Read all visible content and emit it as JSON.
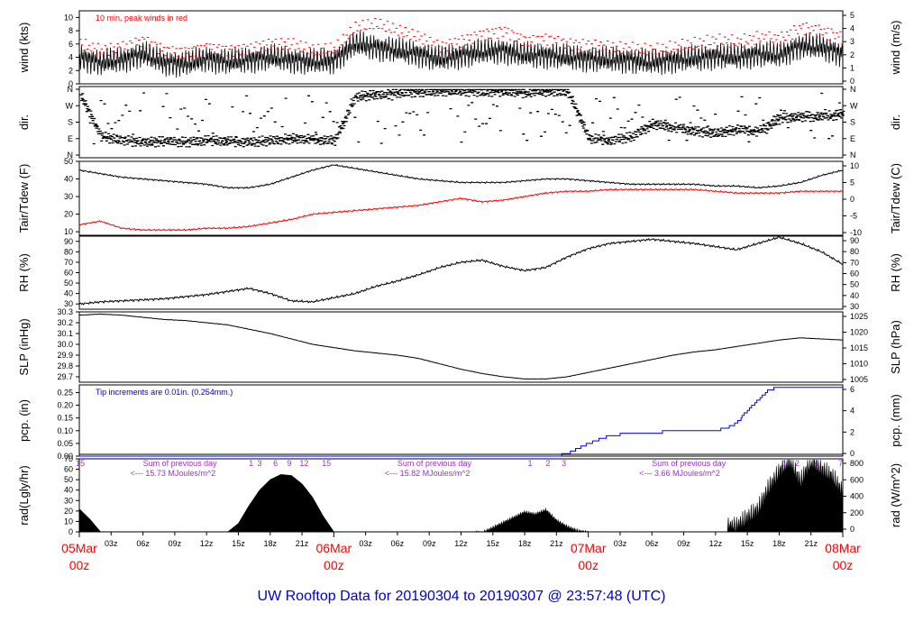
{
  "title": "UW Rooftop Data for 20190304  to  20190307 @ 23:57:48  (UTC)",
  "colors": {
    "series": "#000000",
    "peak": "#ff0000",
    "dew": "#ff0000",
    "precip": "#0000ff",
    "note_blue": "#0000cc",
    "sum_purple": "#9933cc",
    "day_label": "#ff0000"
  },
  "x_axis": {
    "range_hours": [
      0,
      72
    ],
    "ticks": [
      {
        "h": 3,
        "label": "03z"
      },
      {
        "h": 6,
        "label": "06z"
      },
      {
        "h": 9,
        "label": "09z"
      },
      {
        "h": 12,
        "label": "12z"
      },
      {
        "h": 15,
        "label": "15z"
      },
      {
        "h": 18,
        "label": "18z"
      },
      {
        "h": 21,
        "label": "21z"
      },
      {
        "h": 27,
        "label": "03z"
      },
      {
        "h": 30,
        "label": "06z"
      },
      {
        "h": 33,
        "label": "09z"
      },
      {
        "h": 36,
        "label": "12z"
      },
      {
        "h": 39,
        "label": "15z"
      },
      {
        "h": 42,
        "label": "18z"
      },
      {
        "h": 45,
        "label": "21z"
      },
      {
        "h": 51,
        "label": "03z"
      },
      {
        "h": 54,
        "label": "06z"
      },
      {
        "h": 57,
        "label": "09z"
      },
      {
        "h": 60,
        "label": "12z"
      },
      {
        "h": 63,
        "label": "15z"
      },
      {
        "h": 66,
        "label": "18z"
      },
      {
        "h": 69,
        "label": "21z"
      }
    ],
    "day_labels": [
      {
        "h": 0,
        "date": "05Mar",
        "time": "00z"
      },
      {
        "h": 24,
        "date": "06Mar",
        "time": "00z"
      },
      {
        "h": 48,
        "date": "07Mar",
        "time": "00z"
      },
      {
        "h": 72,
        "date": "08Mar",
        "time": "00z"
      }
    ]
  },
  "chart_data": [
    {
      "type": "line",
      "ylabel": "wind (kts)",
      "ylabel_right": "wind (m/s)",
      "ylim": [
        0,
        11
      ],
      "yticks": [
        0,
        2,
        4,
        6,
        8,
        10
      ],
      "yticks_right": [
        0,
        1,
        2,
        3,
        4,
        5
      ],
      "annotation": "10 min. peak winds in red",
      "x": [
        0,
        2,
        4,
        6,
        8,
        10,
        12,
        14,
        16,
        18,
        20,
        22,
        24,
        26,
        28,
        30,
        32,
        34,
        36,
        38,
        40,
        42,
        44,
        46,
        48,
        50,
        52,
        54,
        56,
        58,
        60,
        62,
        64,
        66,
        68,
        70,
        72
      ],
      "series": [
        {
          "values": [
            4.0,
            3.2,
            3.6,
            4.5,
            3.2,
            3.0,
            3.8,
            3.3,
            3.6,
            4.0,
            3.6,
            3.3,
            3.5,
            6.0,
            5.5,
            5.0,
            4.5,
            3.7,
            4.3,
            4.8,
            5.0,
            4.3,
            4.3,
            4.0,
            3.8,
            3.6,
            3.6,
            3.2,
            3.6,
            3.8,
            4.2,
            4.0,
            4.5,
            4.3,
            5.7,
            5.5,
            4.5
          ]
        },
        {
          "values": [
            6.0,
            5.0,
            5.5,
            6.5,
            5.0,
            4.8,
            5.5,
            5.0,
            5.3,
            6.0,
            6.0,
            5.0,
            5.3,
            8.5,
            9.0,
            8.0,
            7.0,
            5.5,
            6.5,
            7.5,
            8.0,
            6.5,
            6.8,
            6.0,
            5.8,
            5.5,
            5.3,
            5.0,
            5.5,
            6.0,
            6.5,
            6.3,
            7.0,
            6.8,
            8.5,
            8.0,
            7.0
          ]
        }
      ]
    },
    {
      "type": "scatter",
      "ylabel": "dir.",
      "ylabel_right": "dir.",
      "yticks_labels": [
        "N",
        "E",
        "S",
        "W",
        "N"
      ],
      "yticks_labels_right": [
        "N",
        "E",
        "S",
        "W",
        "N"
      ],
      "x": [
        0,
        2,
        4,
        6,
        8,
        10,
        12,
        14,
        16,
        18,
        20,
        22,
        24,
        26,
        28,
        30,
        32,
        34,
        36,
        38,
        40,
        42,
        44,
        46,
        48,
        50,
        52,
        54,
        56,
        58,
        60,
        62,
        64,
        66,
        68,
        70,
        72
      ],
      "values_deg": [
        330,
        100,
        80,
        70,
        75,
        70,
        80,
        75,
        70,
        80,
        90,
        85,
        80,
        320,
        330,
        340,
        345,
        350,
        350,
        345,
        350,
        340,
        350,
        345,
        90,
        80,
        100,
        170,
        150,
        130,
        120,
        140,
        130,
        200,
        210,
        210,
        225
      ]
    },
    {
      "type": "line",
      "ylabel": "Tair/Tdew (F)",
      "ylabel_right": "Tair/Tdew (C)",
      "ylim": [
        8,
        50
      ],
      "yticks": [
        10,
        20,
        30,
        40,
        50
      ],
      "yticks_right": [
        -10,
        -5,
        0,
        5,
        10
      ],
      "x": [
        0,
        2,
        4,
        6,
        8,
        10,
        12,
        14,
        16,
        18,
        20,
        22,
        24,
        26,
        28,
        30,
        32,
        34,
        36,
        38,
        40,
        42,
        44,
        46,
        48,
        50,
        52,
        54,
        56,
        58,
        60,
        62,
        64,
        66,
        68,
        70,
        72
      ],
      "series": [
        {
          "values": [
            45,
            43,
            41,
            40,
            39,
            38,
            37,
            35,
            35,
            37,
            41,
            45,
            48,
            46,
            44,
            42,
            40,
            39,
            38,
            38,
            38,
            39,
            40,
            40,
            39,
            38,
            37,
            37,
            37,
            37,
            36,
            36,
            35,
            36,
            38,
            42,
            45
          ]
        },
        {
          "values": [
            14,
            16,
            12,
            11,
            11,
            11,
            12,
            12,
            13,
            15,
            17,
            20,
            21,
            22,
            23,
            24,
            25,
            27,
            29,
            27,
            28,
            30,
            32,
            33,
            33,
            34,
            34,
            34,
            34,
            34,
            33,
            32,
            32,
            32,
            33,
            33,
            33
          ]
        }
      ]
    },
    {
      "type": "line",
      "ylabel": "RH (%)",
      "ylabel_right": "RH (%)",
      "ylim": [
        25,
        95
      ],
      "yticks": [
        30,
        40,
        50,
        60,
        70,
        80,
        90
      ],
      "yticks_right": [
        30,
        40,
        50,
        60,
        70,
        80,
        90
      ],
      "x": [
        0,
        2,
        4,
        6,
        8,
        10,
        12,
        14,
        16,
        18,
        20,
        22,
        24,
        26,
        28,
        30,
        32,
        34,
        36,
        38,
        40,
        42,
        44,
        46,
        48,
        50,
        52,
        54,
        56,
        58,
        60,
        62,
        64,
        66,
        68,
        70,
        72
      ],
      "values": [
        30,
        32,
        33,
        34,
        35,
        37,
        39,
        42,
        45,
        40,
        33,
        32,
        36,
        40,
        47,
        52,
        58,
        65,
        70,
        72,
        66,
        62,
        65,
        75,
        83,
        88,
        90,
        92,
        90,
        88,
        85,
        82,
        88,
        94,
        88,
        80,
        68
      ]
    },
    {
      "type": "line",
      "ylabel": "SLP (inHg)",
      "ylabel_right": "SLP (hPa)",
      "ylim": [
        29.65,
        30.3
      ],
      "yticks": [
        29.7,
        29.8,
        29.9,
        30.0,
        30.1,
        30.2,
        30.3
      ],
      "yticks_right": [
        1005,
        1010,
        1015,
        1020,
        1025
      ],
      "x": [
        0,
        2,
        4,
        6,
        8,
        10,
        12,
        14,
        16,
        18,
        20,
        22,
        24,
        26,
        28,
        30,
        32,
        34,
        36,
        38,
        40,
        42,
        44,
        46,
        48,
        50,
        52,
        54,
        56,
        58,
        60,
        62,
        64,
        66,
        68,
        70,
        72
      ],
      "values": [
        30.27,
        30.28,
        30.27,
        30.25,
        30.23,
        30.22,
        30.2,
        30.18,
        30.14,
        30.1,
        30.05,
        30.0,
        29.97,
        29.94,
        29.92,
        29.9,
        29.87,
        29.82,
        29.77,
        29.73,
        29.7,
        29.68,
        29.68,
        29.7,
        29.74,
        29.78,
        29.82,
        29.86,
        29.9,
        29.93,
        29.95,
        29.98,
        30.01,
        30.04,
        30.06,
        30.05,
        30.04
      ]
    },
    {
      "type": "line",
      "ylabel": "pcp. (in)",
      "ylabel_right": "pcp. (mm)",
      "ylim": [
        0,
        0.28
      ],
      "yticks": [
        0,
        0.05,
        0.1,
        0.15,
        0.2,
        0.25
      ],
      "yticks_right": [
        0,
        2,
        4,
        6
      ],
      "annotation": "Tip increments are 0.01in. (0.254mm.)",
      "x": [
        0,
        45,
        46,
        47,
        48,
        50,
        52,
        54,
        56,
        58,
        60,
        61,
        62,
        63,
        64,
        65,
        66,
        72
      ],
      "values": [
        0,
        0,
        0.01,
        0.03,
        0.05,
        0.08,
        0.09,
        0.09,
        0.1,
        0.1,
        0.1,
        0.11,
        0.13,
        0.18,
        0.22,
        0.26,
        0.27,
        0.27
      ]
    },
    {
      "type": "area",
      "ylabel": "rad(Lgly/hr)",
      "ylabel_right": "rad (W/m^2)",
      "ylim": [
        0,
        70
      ],
      "yticks": [
        0,
        10,
        20,
        30,
        40,
        50,
        60,
        70
      ],
      "yticks_right": [
        0,
        200,
        400,
        600,
        800
      ],
      "sum_labels": [
        {
          "h": 6,
          "line1": "Sum of previous day",
          "line2": "<--- 15.73 MJoules/m^2"
        },
        {
          "h": 30,
          "line1": "Sum of previous day",
          "line2": "<--- 15.82 MJoules/m^2"
        },
        {
          "h": 54,
          "line1": "Sum of previous day",
          "line2": "<--- 3.66 MJoules/m^2"
        }
      ],
      "hour_marks": [
        {
          "h": 0.1,
          "label": "15"
        },
        {
          "h": 16.2,
          "label": "1"
        },
        {
          "h": 17.0,
          "label": "3"
        },
        {
          "h": 18.5,
          "label": "6"
        },
        {
          "h": 19.8,
          "label": "9"
        },
        {
          "h": 21.2,
          "label": "12"
        },
        {
          "h": 23.3,
          "label": "15"
        },
        {
          "h": 42.5,
          "label": "1"
        },
        {
          "h": 44.2,
          "label": "2"
        },
        {
          "h": 45.7,
          "label": "3"
        },
        {
          "h": 66.5,
          "label": "1"
        },
        {
          "h": 67.7,
          "label": "2"
        },
        {
          "h": 69.5,
          "label": "4"
        },
        {
          "h": 71.8,
          "label": "7"
        }
      ],
      "x": [
        0,
        1,
        2,
        13,
        14,
        15,
        16,
        17,
        18,
        19,
        20,
        21,
        22,
        23,
        24,
        37,
        38,
        39,
        40,
        41,
        42,
        43,
        44,
        45,
        46,
        47,
        48,
        61,
        62,
        63,
        64,
        65,
        66,
        67,
        68,
        69,
        70,
        71,
        72
      ],
      "values": [
        22,
        12,
        0,
        0,
        0,
        8,
        25,
        40,
        50,
        55,
        54,
        46,
        33,
        15,
        0,
        0,
        0,
        5,
        10,
        15,
        20,
        18,
        22,
        12,
        6,
        2,
        0,
        0,
        0,
        8,
        15,
        35,
        50,
        62,
        40,
        60,
        52,
        45,
        30
      ]
    }
  ]
}
